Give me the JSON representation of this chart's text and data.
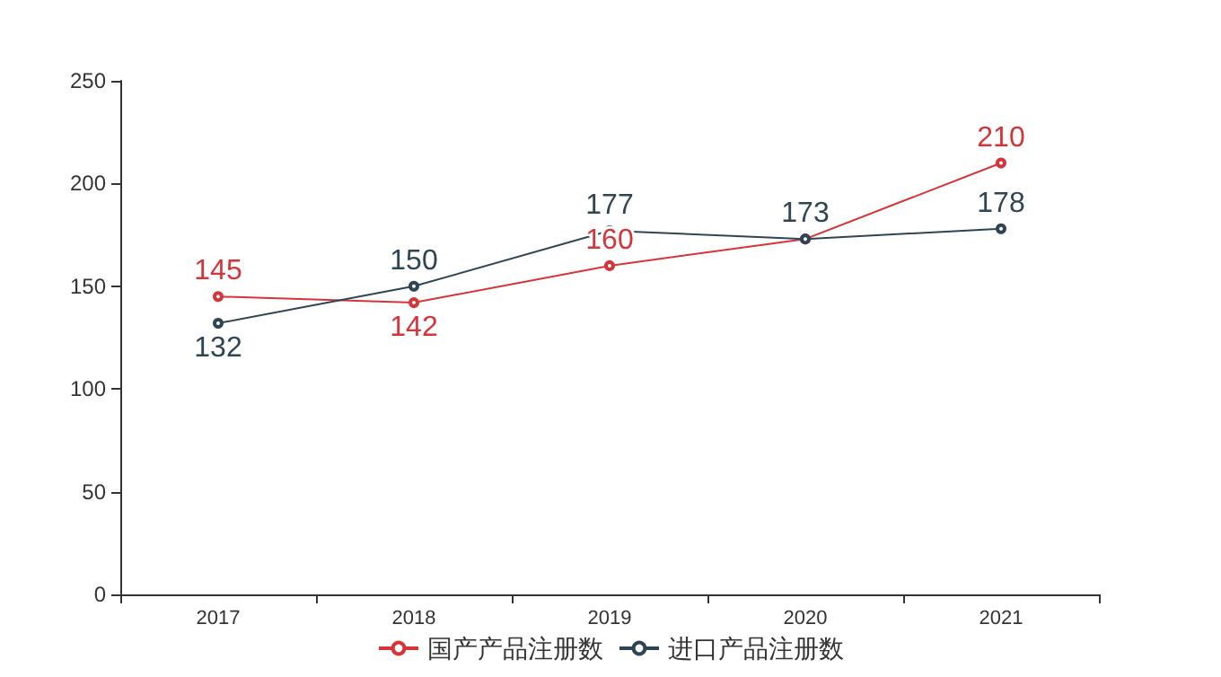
{
  "chart_data": {
    "type": "line",
    "categories": [
      "2017",
      "2018",
      "2019",
      "2020",
      "2021"
    ],
    "series": [
      {
        "name": "国产产品注册数",
        "color": "#d7343a",
        "values": [
          145,
          142,
          160,
          173,
          210
        ],
        "value_labels": [
          "145",
          "142",
          "160",
          null,
          "210"
        ]
      },
      {
        "name": "进口产品注册数",
        "color": "#2f4554",
        "values": [
          132,
          150,
          177,
          173,
          178
        ],
        "value_labels": [
          "132",
          "150",
          "177",
          "173",
          "178"
        ]
      }
    ],
    "ylim": [
      0,
      250
    ],
    "yticks": [
      0,
      50,
      100,
      150,
      200,
      250
    ],
    "marker": "circle",
    "legend": "bottom",
    "grid": false
  }
}
